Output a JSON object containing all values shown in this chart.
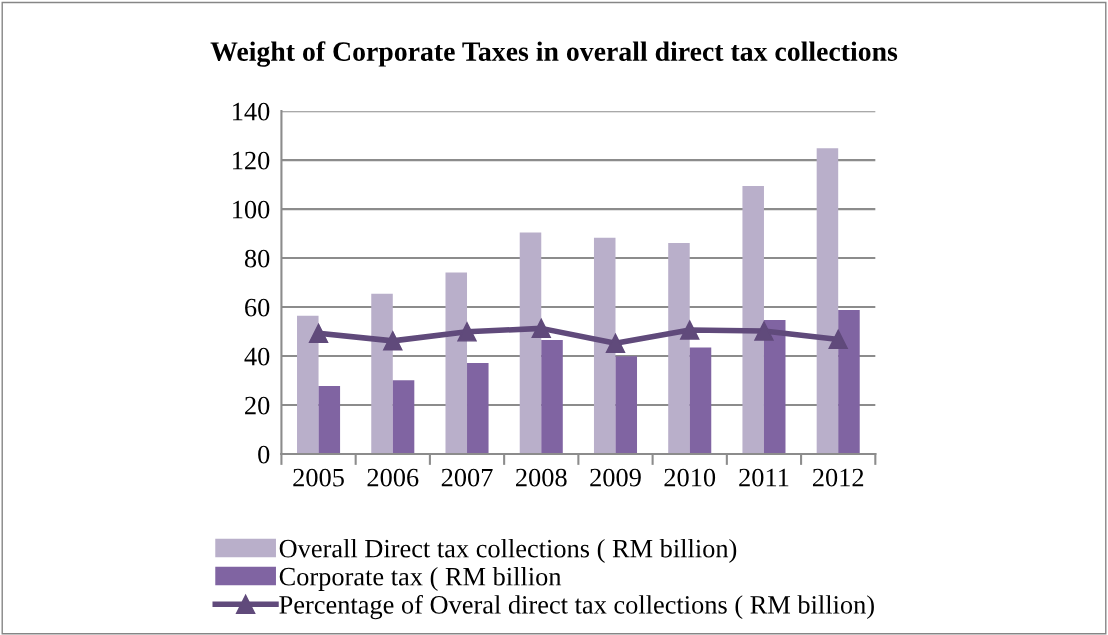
{
  "chart_data": {
    "type": "bar",
    "title": "Weight of Corporate Taxes in overall direct tax collections",
    "categories": [
      "2005",
      "2006",
      "2007",
      "2008",
      "2009",
      "2010",
      "2011",
      "2012"
    ],
    "series": [
      {
        "name": "Overall Direct tax collections ( RM billion)",
        "color": "#b9afca",
        "values": [
          56.5,
          65.4,
          74.1,
          90.4,
          88.3,
          86.2,
          109.4,
          124.8
        ]
      },
      {
        "name": "Corporate tax ( RM billion",
        "color": "#8064a2",
        "values": [
          27.8,
          30.1,
          37.2,
          46.6,
          39.9,
          43.5,
          54.7,
          58.8
        ]
      },
      {
        "name": "Percentage of Overal direct tax collections ( RM billion)",
        "type": "line",
        "color": "#604a7b",
        "marker": "triangle",
        "values": [
          49.3,
          46.2,
          49.9,
          51.3,
          45.2,
          50.6,
          50.2,
          46.8
        ]
      }
    ],
    "ylim": [
      0,
      140
    ],
    "yticks": [
      0,
      20,
      40,
      60,
      80,
      100,
      120,
      140
    ],
    "grid": "y",
    "legend": "bottom"
  }
}
